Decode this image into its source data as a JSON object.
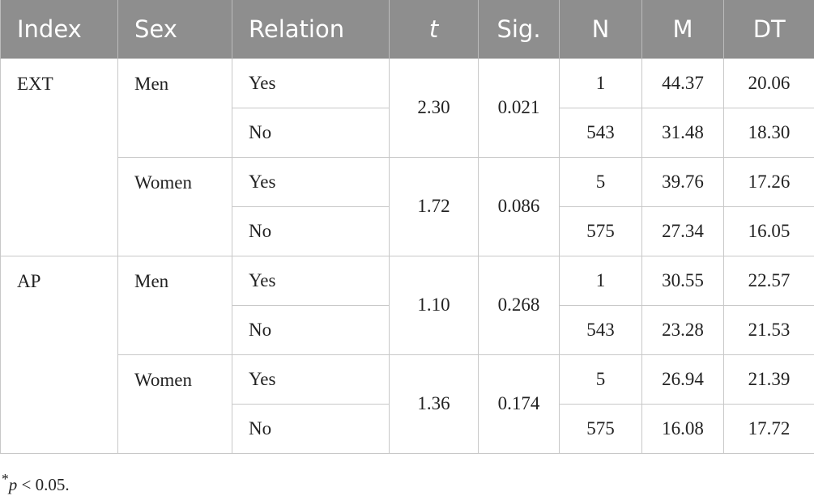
{
  "table": {
    "header": [
      "Index",
      "Sex",
      "Relation",
      "t",
      "Sig.",
      "N",
      "M",
      "DT"
    ],
    "groups": [
      {
        "index": "EXT",
        "sexes": [
          {
            "sex": "Men",
            "t": "2.30",
            "sig": "0.021",
            "rows": [
              {
                "relation": "Yes",
                "n": "1",
                "m": "44.37",
                "dt": "20.06"
              },
              {
                "relation": "No",
                "n": "543",
                "m": "31.48",
                "dt": "18.30"
              }
            ]
          },
          {
            "sex": "Women",
            "t": "1.72",
            "sig": "0.086",
            "rows": [
              {
                "relation": "Yes",
                "n": "5",
                "m": "39.76",
                "dt": "17.26"
              },
              {
                "relation": "No",
                "n": "575",
                "m": "27.34",
                "dt": "16.05"
              }
            ]
          }
        ]
      },
      {
        "index": "AP",
        "sexes": [
          {
            "sex": "Men",
            "t": "1.10",
            "sig": "0.268",
            "rows": [
              {
                "relation": "Yes",
                "n": "1",
                "m": "30.55",
                "dt": "22.57"
              },
              {
                "relation": "No",
                "n": "543",
                "m": "23.28",
                "dt": "21.53"
              }
            ]
          },
          {
            "sex": "Women",
            "t": "1.36",
            "sig": "0.174",
            "rows": [
              {
                "relation": "Yes",
                "n": "5",
                "m": "26.94",
                "dt": "21.39"
              },
              {
                "relation": "No",
                "n": "575",
                "m": "16.08",
                "dt": "17.72"
              }
            ]
          }
        ]
      }
    ]
  },
  "footnote": {
    "marker": "*",
    "symbol": "p",
    "text": "< 0.05."
  }
}
